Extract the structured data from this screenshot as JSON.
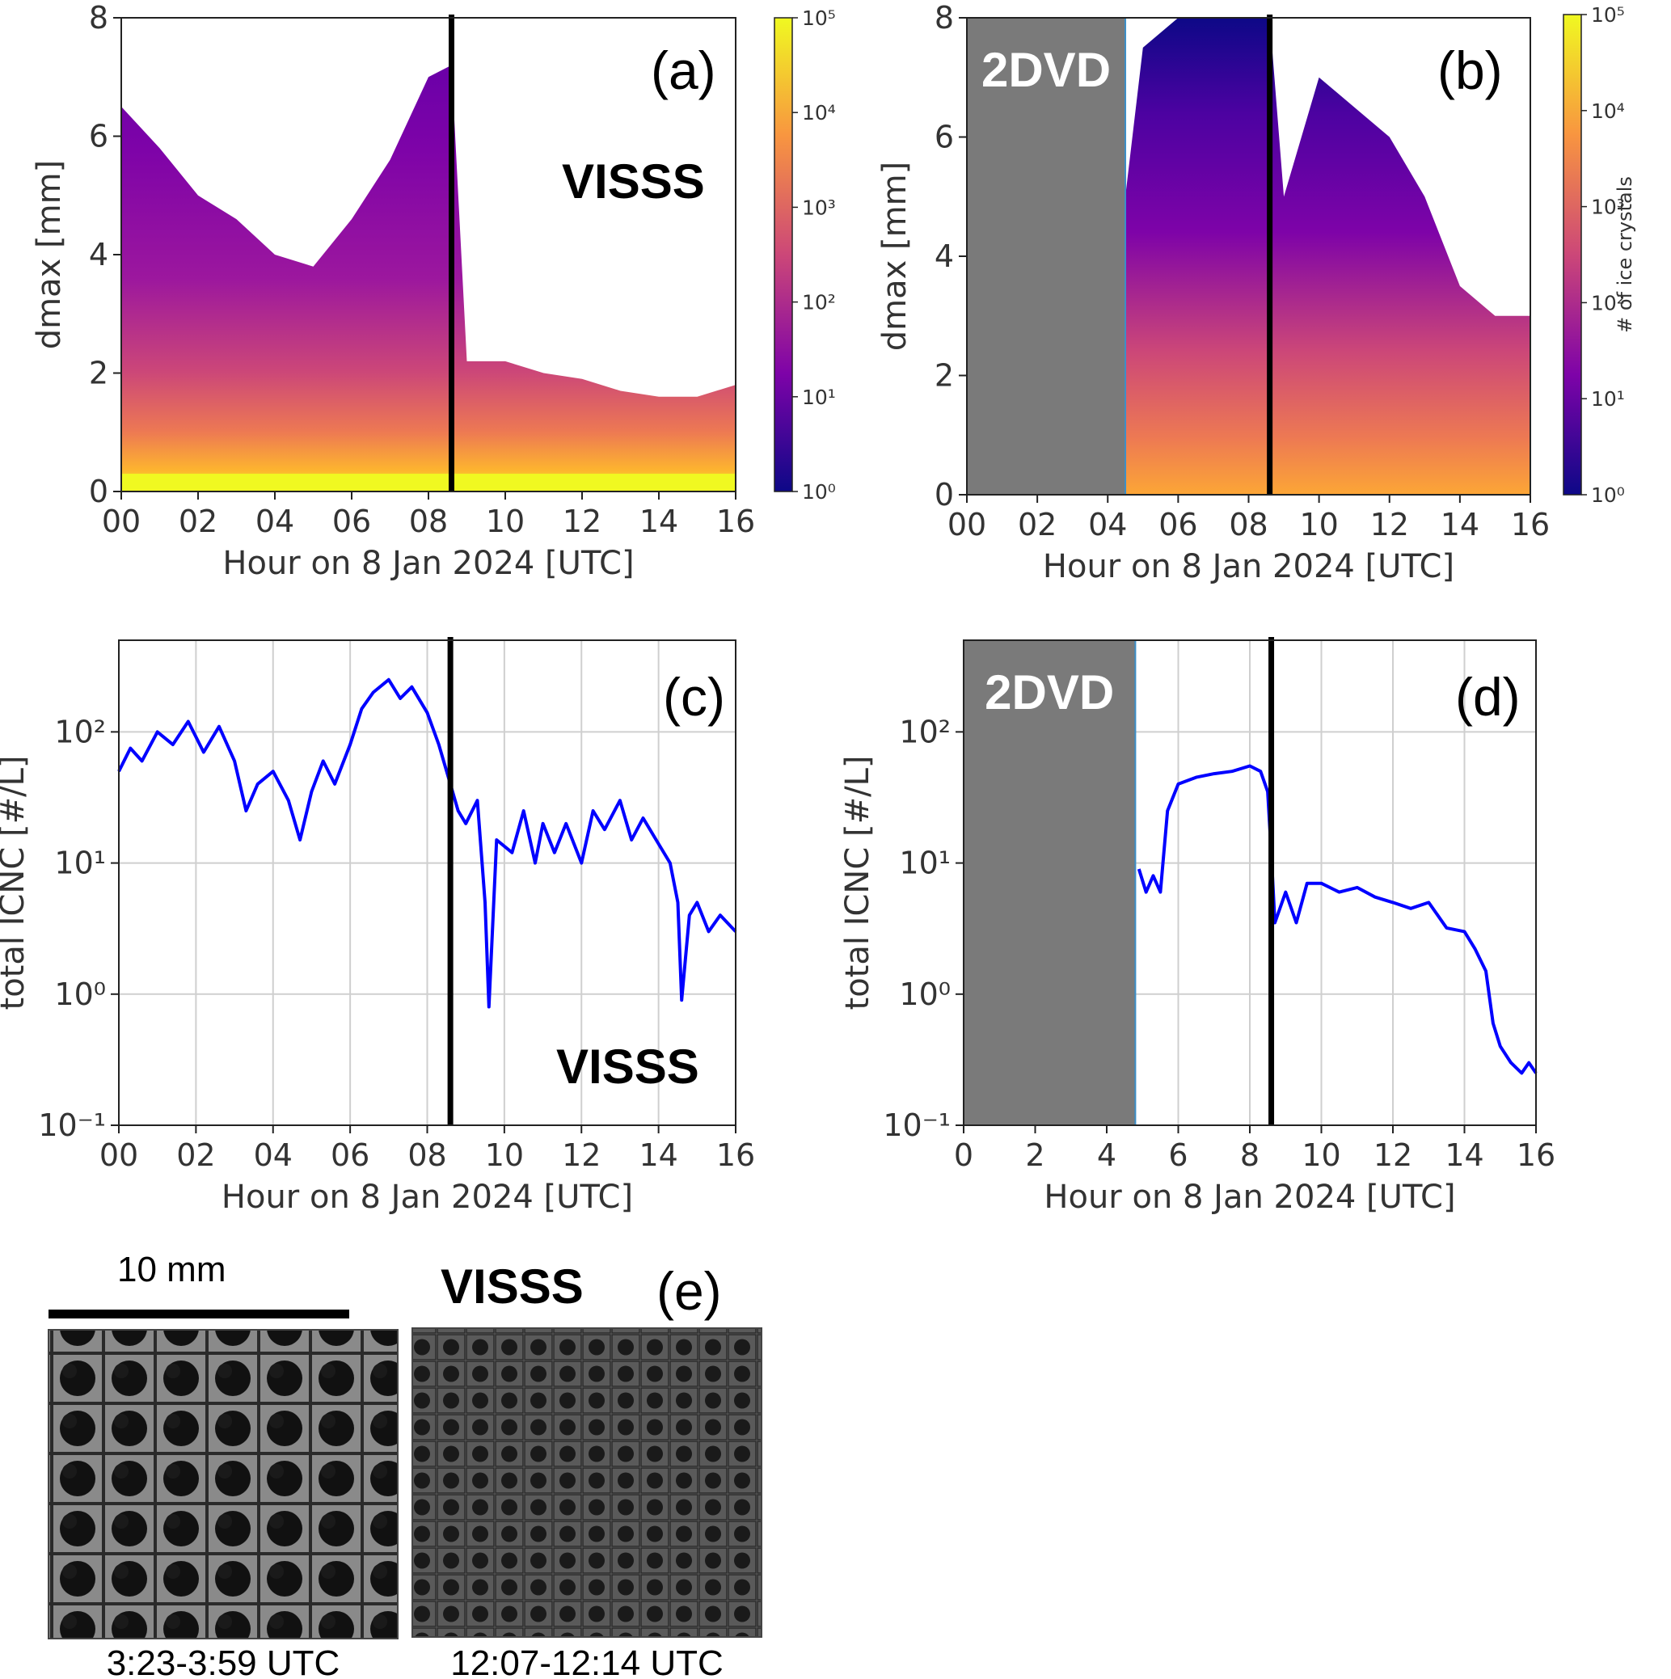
{
  "chart_data": [
    {
      "id": "a",
      "panel_label": "(a)",
      "instrument": "VISSS",
      "type": "heatmap",
      "xlabel": "Hour on 8 Jan 2024 [UTC]",
      "ylabel": "dmax [mm]",
      "xlim": [
        0,
        16
      ],
      "ylim": [
        0,
        8
      ],
      "xticklabels": [
        "00",
        "02",
        "04",
        "06",
        "08",
        "10",
        "12",
        "14",
        "16"
      ],
      "yticks": [
        0,
        2,
        4,
        6,
        8
      ],
      "colorbar": {
        "scale": "log",
        "range": [
          1,
          100000
        ],
        "ticklabels": [
          "10⁰",
          "10¹",
          "10²",
          "10³",
          "10⁴",
          "10⁵"
        ],
        "label": ""
      },
      "vline_x": 8.6,
      "dmax_envelope_mm": {
        "hours": [
          0,
          1,
          2,
          3,
          4,
          5,
          6,
          7,
          8,
          8.6,
          9,
          10,
          11,
          12,
          13,
          14,
          15,
          16
        ],
        "values": [
          6.5,
          5.8,
          5.0,
          4.6,
          4.0,
          3.8,
          4.6,
          5.6,
          7.0,
          7.2,
          2.2,
          2.2,
          2.0,
          1.9,
          1.7,
          1.6,
          1.6,
          1.8
        ]
      }
    },
    {
      "id": "b",
      "panel_label": "(b)",
      "instrument": "2DVD",
      "type": "heatmap",
      "xlabel": "Hour on 8 Jan 2024 [UTC]",
      "ylabel": "dmax [mm]",
      "xlim": [
        0,
        16
      ],
      "ylim": [
        0,
        8
      ],
      "xticklabels": [
        "00",
        "02",
        "04",
        "06",
        "08",
        "10",
        "12",
        "14",
        "16"
      ],
      "yticks": [
        0,
        2,
        4,
        6,
        8
      ],
      "colorbar": {
        "scale": "log",
        "range": [
          1,
          100000
        ],
        "ticklabels": [
          "10⁰",
          "10¹",
          "10²",
          "10³",
          "10⁴",
          "10⁵"
        ],
        "label": "# of ice crystals"
      },
      "no_data_hours": [
        0,
        4.5
      ],
      "vline_x": 8.6,
      "dmax_envelope_mm": {
        "hours": [
          4.5,
          5,
          6,
          7,
          8,
          8.6,
          9,
          10,
          11,
          12,
          13,
          14,
          15,
          16
        ],
        "values": [
          5.0,
          7.5,
          8.0,
          8.0,
          8.0,
          8.0,
          5.0,
          7.0,
          6.5,
          6.0,
          5.0,
          3.5,
          3.0,
          3.0
        ]
      }
    },
    {
      "id": "c",
      "panel_label": "(c)",
      "instrument": "VISSS",
      "type": "line",
      "xlabel": "Hour on 8 Jan 2024 [UTC]",
      "ylabel": "total ICNC [#/L]",
      "xlim": [
        0,
        16
      ],
      "ylim": [
        0.1,
        500
      ],
      "yscale": "log",
      "xticklabels": [
        "00",
        "02",
        "04",
        "06",
        "08",
        "10",
        "12",
        "14",
        "16"
      ],
      "yticks": [
        0.1,
        1,
        10,
        100
      ],
      "yticklabels": [
        "10⁻¹",
        "10⁰",
        "10¹",
        "10²"
      ],
      "vline_x": 8.6,
      "series": [
        {
          "color": "#0000ff",
          "x": [
            0,
            0.3,
            0.6,
            1.0,
            1.4,
            1.8,
            2.2,
            2.6,
            3.0,
            3.3,
            3.6,
            4.0,
            4.4,
            4.7,
            5.0,
            5.3,
            5.6,
            6.0,
            6.3,
            6.6,
            7.0,
            7.3,
            7.6,
            8.0,
            8.3,
            8.6,
            8.8,
            9.0,
            9.3,
            9.5,
            9.6,
            9.8,
            10.2,
            10.5,
            10.8,
            11.0,
            11.3,
            11.6,
            12.0,
            12.3,
            12.6,
            13.0,
            13.3,
            13.6,
            14.0,
            14.3,
            14.5,
            14.6,
            14.8,
            15.0,
            15.3,
            15.6,
            16.0
          ],
          "y": [
            50,
            75,
            60,
            100,
            80,
            120,
            70,
            110,
            60,
            25,
            40,
            50,
            30,
            15,
            35,
            60,
            40,
            80,
            150,
            200,
            250,
            180,
            220,
            140,
            80,
            40,
            25,
            20,
            30,
            5,
            0.8,
            15,
            12,
            25,
            10,
            20,
            12,
            20,
            10,
            25,
            18,
            30,
            15,
            22,
            14,
            10,
            5,
            0.9,
            4,
            5,
            3,
            4,
            3
          ]
        }
      ]
    },
    {
      "id": "d",
      "panel_label": "(d)",
      "instrument": "2DVD",
      "type": "line",
      "xlabel": "Hour on 8 Jan 2024 [UTC]",
      "ylabel": "total ICNC [#/L]",
      "xlim": [
        0,
        16
      ],
      "ylim": [
        0.1,
        500
      ],
      "yscale": "log",
      "xticklabels": [
        "0",
        "2",
        "4",
        "6",
        "8",
        "10",
        "12",
        "14",
        "16"
      ],
      "yticks": [
        0.1,
        1,
        10,
        100
      ],
      "yticklabels": [
        "10⁻¹",
        "10⁰",
        "10¹",
        "10²"
      ],
      "no_data_hours": [
        0,
        4.8
      ],
      "vline_x": 8.6,
      "series": [
        {
          "color": "#0000ff",
          "x": [
            4.9,
            5.1,
            5.3,
            5.5,
            5.7,
            6.0,
            6.5,
            7.0,
            7.5,
            8.0,
            8.3,
            8.5,
            8.6,
            8.7,
            9.0,
            9.3,
            9.6,
            10.0,
            10.5,
            11.0,
            11.5,
            12.0,
            12.5,
            13.0,
            13.5,
            14.0,
            14.3,
            14.6,
            14.8,
            15.0,
            15.3,
            15.6,
            15.8,
            16.0
          ],
          "y": [
            9,
            6,
            8,
            6,
            25,
            40,
            45,
            48,
            50,
            55,
            50,
            35,
            12,
            3.5,
            6,
            3.5,
            7,
            7,
            6,
            6.5,
            5.5,
            5,
            4.5,
            5,
            3.2,
            3,
            2.2,
            1.5,
            0.6,
            0.4,
            0.3,
            0.25,
            0.3,
            0.25
          ]
        }
      ]
    }
  ],
  "overlays": {
    "gray_box_label": "2DVD",
    "panel_e_label": "(e)",
    "panel_e_instrument": "VISSS",
    "scale_bar_label": "10 mm",
    "image_captions": [
      "3:23-3:59 UTC",
      "12:07-12:14 UTC"
    ]
  },
  "colors": {
    "line": "#0000ff",
    "nodata": "#7a7a7a",
    "nodata_edge": "#3c8fc8",
    "vline": "#000000"
  }
}
